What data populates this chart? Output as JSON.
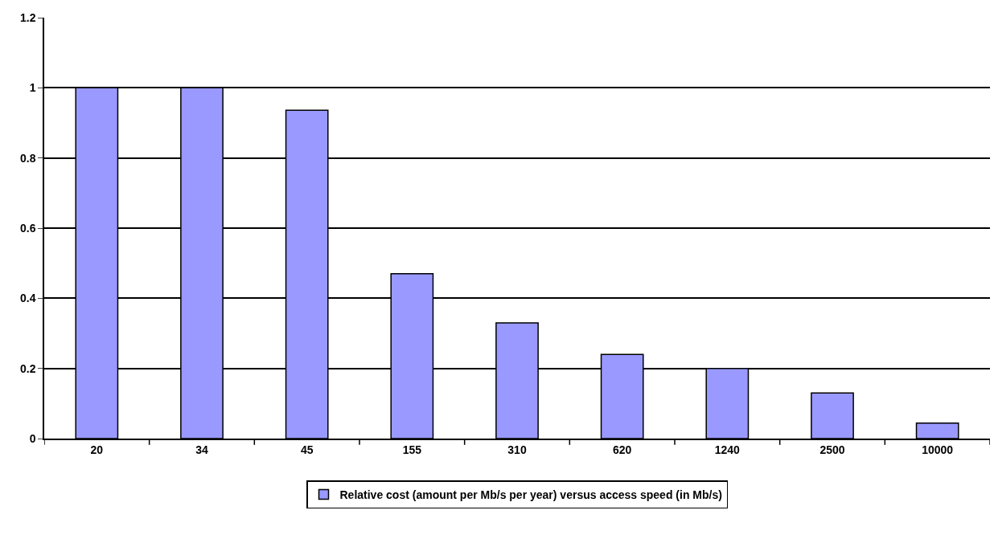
{
  "chart_data": {
    "type": "bar",
    "categories": [
      "20",
      "34",
      "45",
      "155",
      "310",
      "620",
      "1240",
      "2500",
      "10000"
    ],
    "series": [
      {
        "name": "Relative cost (amount per Mb/s per year) versus access speed (in Mb/s)",
        "color": "#9999ff",
        "values": [
          1,
          1,
          0.936,
          0.47,
          0.33,
          0.24,
          0.2,
          0.13,
          0.044
        ]
      }
    ],
    "ylim": [
      0,
      1.2
    ],
    "yticks": [
      0,
      0.2,
      0.4,
      0.6,
      0.8,
      1,
      1.2
    ],
    "grid": "y",
    "legend": "bottom"
  }
}
